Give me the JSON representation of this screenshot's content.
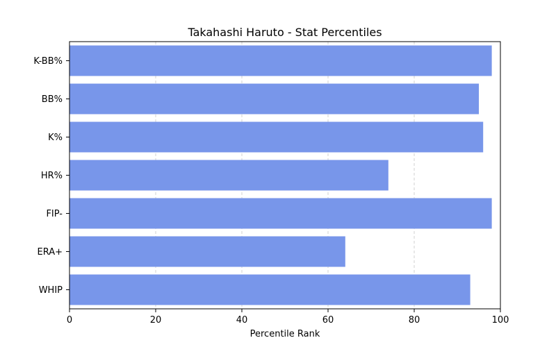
{
  "chart_data": {
    "type": "bar",
    "orientation": "horizontal",
    "title": "Takahashi Haruto - Stat Percentiles",
    "xlabel": "Percentile Rank",
    "ylabel": "",
    "categories": [
      "K-BB%",
      "BB%",
      "K%",
      "HR%",
      "FIP-",
      "ERA+",
      "WHIP"
    ],
    "values": [
      98,
      95,
      96,
      74,
      98,
      64,
      93
    ],
    "xlim": [
      0,
      100
    ],
    "xticks": [
      0,
      20,
      40,
      60,
      80,
      100
    ],
    "grid": "x-dashed",
    "legend": "none",
    "bar_color": "#7896EA"
  }
}
